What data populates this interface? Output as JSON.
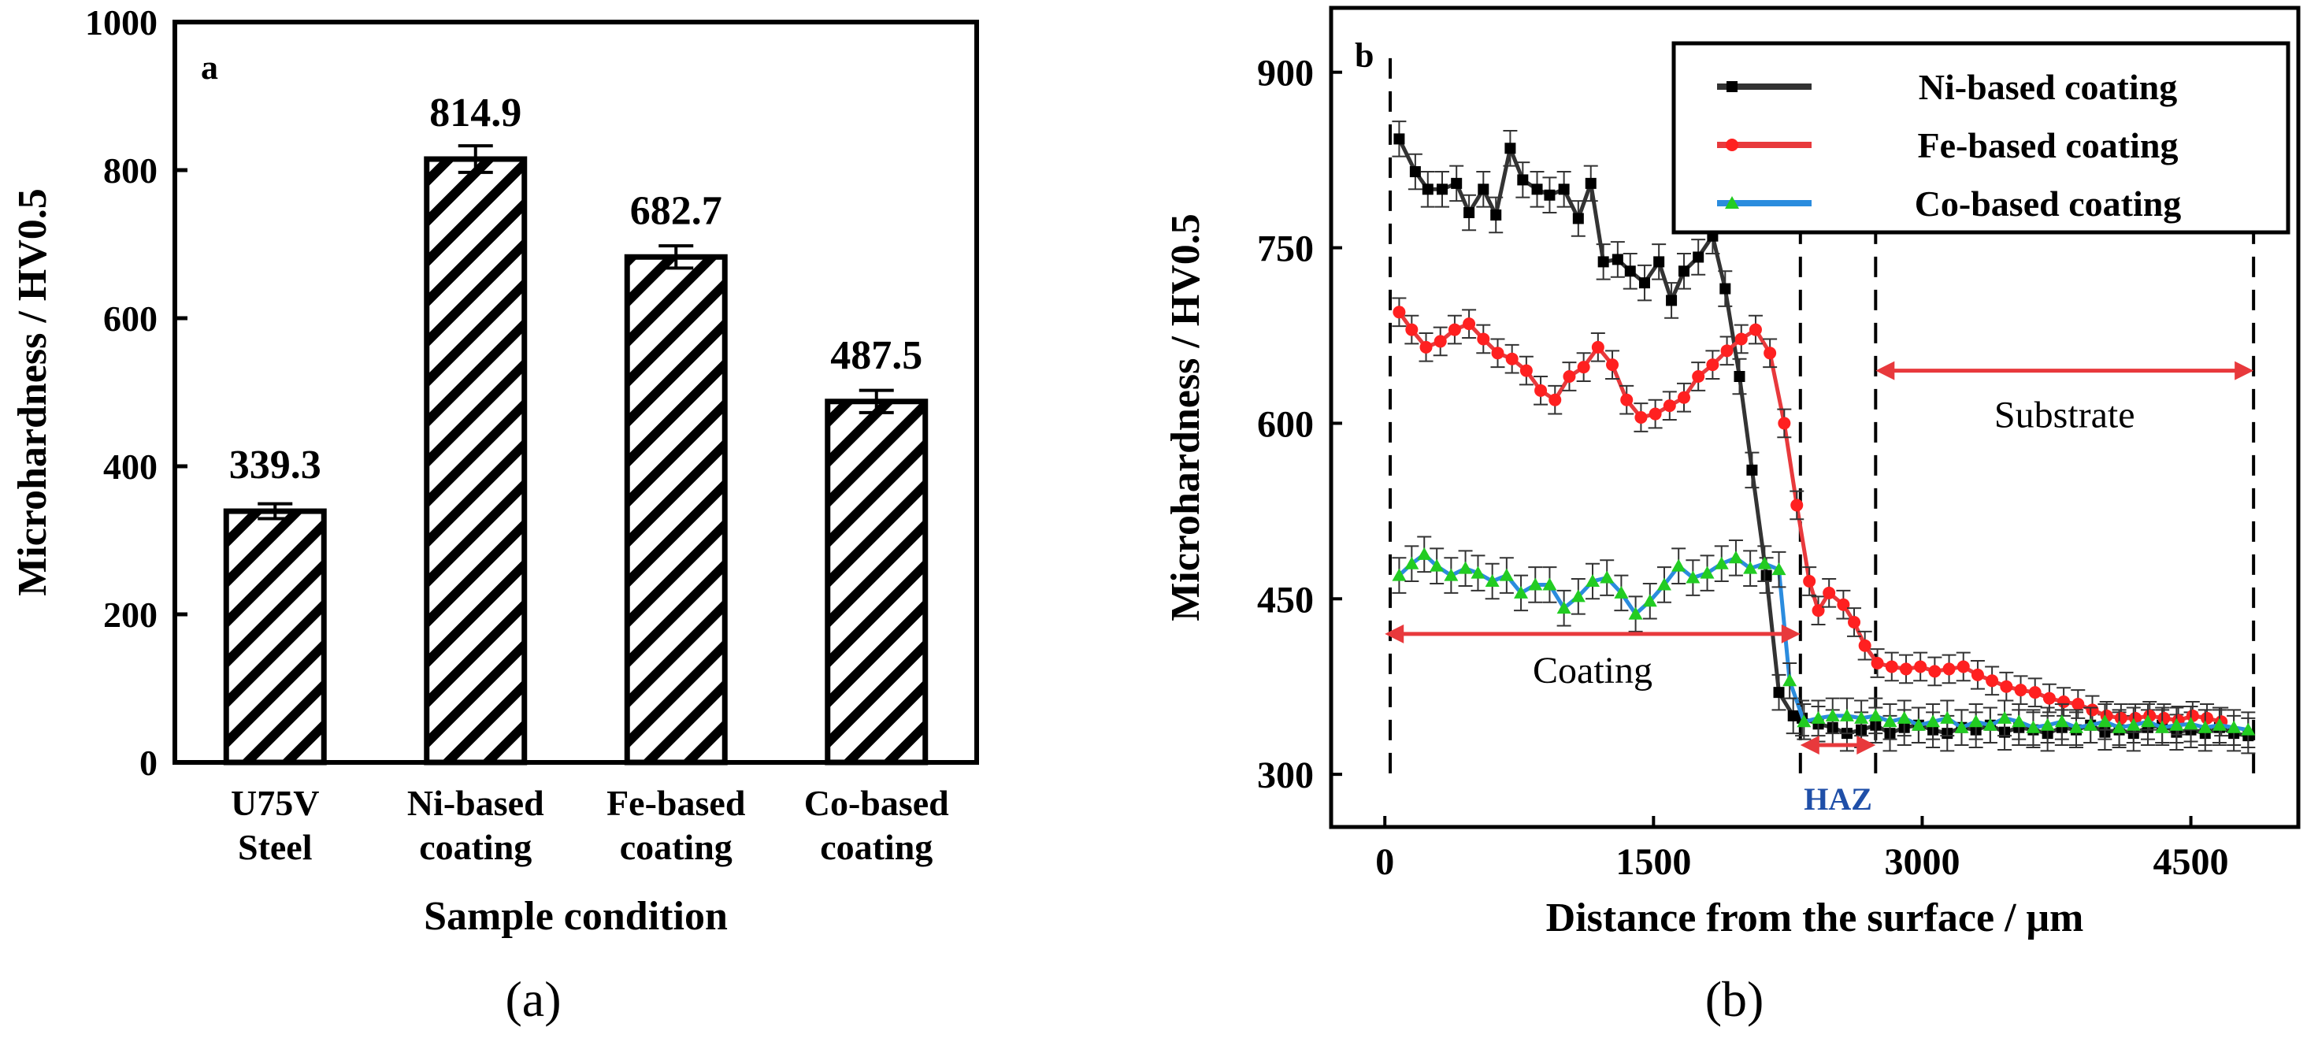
{
  "chart_data": [
    {
      "type": "bar",
      "panel_label": "a",
      "caption": "(a)",
      "categories": [
        [
          "U75V",
          "Steel"
        ],
        [
          "Ni-based",
          "coating"
        ],
        [
          "Fe-based",
          "coating"
        ],
        [
          "Co-based",
          "coating"
        ]
      ],
      "values": [
        339.3,
        814.9,
        682.7,
        487.5
      ],
      "errors": [
        10,
        18,
        15,
        15
      ],
      "value_labels": [
        "339.3",
        "814.9",
        "682.7",
        "487.5"
      ],
      "xlabel": "Sample condition",
      "ylabel": "Microhardness / HV0.5",
      "ylim": [
        0,
        1000
      ],
      "yticks": [
        0,
        200,
        400,
        600,
        800,
        1000
      ],
      "ytick_labels": [
        "0",
        "200",
        "400",
        "600",
        "800",
        "1000"
      ],
      "bar_fill": "diagonal-hatch",
      "grid": false
    },
    {
      "type": "line",
      "panel_label": "b",
      "caption": "(b)",
      "xlabel": "Distance from the surface / μm",
      "ylabel": "Microhardness / HV0.5",
      "xlim": [
        -300,
        5100
      ],
      "ylim": [
        255,
        955
      ],
      "xticks": [
        0,
        1500,
        3000,
        4500
      ],
      "xtick_labels": [
        "0",
        "1500",
        "3000",
        "4500"
      ],
      "yticks": [
        300,
        450,
        600,
        750,
        900
      ],
      "ytick_labels": [
        "300",
        "450",
        "600",
        "750",
        "900"
      ],
      "legend_position": "top-right",
      "grid": false,
      "series": [
        {
          "name": "Ni-based coating",
          "color": "#333333",
          "marker": "square",
          "marker_color": "#000000",
          "error": 15,
          "x": [
            80,
            170,
            240,
            320,
            400,
            470,
            550,
            620,
            700,
            770,
            850,
            920,
            1000,
            1080,
            1150,
            1220,
            1300,
            1370,
            1450,
            1530,
            1600,
            1670,
            1750,
            1830,
            1900,
            1980,
            2050,
            2130,
            2200,
            2280,
            2330,
            2420,
            2500,
            2580,
            2660,
            2740,
            2820,
            2900,
            2980,
            3060,
            3140,
            3220,
            3300,
            3380,
            3460,
            3540,
            3620,
            3700,
            3780,
            3860,
            3940,
            4020,
            4100,
            4180,
            4260,
            4340,
            4420,
            4500,
            4580,
            4660,
            4740,
            4820
          ],
          "y": [
            843,
            815,
            800,
            800,
            805,
            780,
            800,
            778,
            835,
            808,
            800,
            795,
            800,
            775,
            805,
            738,
            740,
            730,
            720,
            738,
            705,
            730,
            742,
            760,
            715,
            640,
            560,
            470,
            370,
            350,
            348,
            343,
            340,
            335,
            338,
            342,
            335,
            340,
            342,
            338,
            335,
            340,
            338,
            342,
            336,
            340,
            338,
            335,
            340,
            338,
            342,
            336,
            338,
            335,
            340,
            342,
            336,
            338,
            335,
            340,
            335,
            333
          ]
        },
        {
          "name": "Fe-based coating",
          "color": "#e8393c",
          "marker": "circle",
          "marker_color": "#ff2020",
          "error": 12,
          "x": [
            80,
            150,
            230,
            310,
            390,
            470,
            550,
            630,
            710,
            790,
            870,
            950,
            1030,
            1110,
            1190,
            1270,
            1350,
            1430,
            1510,
            1590,
            1670,
            1750,
            1830,
            1910,
            1990,
            2070,
            2150,
            2230,
            2300,
            2370,
            2420,
            2480,
            2560,
            2620,
            2680,
            2750,
            2830,
            2910,
            2990,
            3070,
            3150,
            3230,
            3310,
            3390,
            3470,
            3550,
            3630,
            3710,
            3790,
            3870,
            3950,
            4030,
            4110,
            4190,
            4270,
            4350,
            4430,
            4510,
            4590,
            4670
          ],
          "y": [
            695,
            680,
            665,
            670,
            680,
            685,
            672,
            660,
            655,
            645,
            628,
            620,
            640,
            648,
            665,
            650,
            620,
            605,
            608,
            615,
            622,
            640,
            650,
            662,
            672,
            680,
            660,
            600,
            530,
            465,
            440,
            455,
            445,
            430,
            410,
            395,
            392,
            390,
            392,
            388,
            390,
            392,
            385,
            380,
            375,
            372,
            370,
            365,
            362,
            360,
            355,
            350,
            348,
            348,
            350,
            348,
            346,
            350,
            348,
            345
          ]
        },
        {
          "name": "Co-based coating",
          "color": "#2b8cde",
          "marker": "triangle",
          "marker_color": "#22cc22",
          "error": 15,
          "x": [
            80,
            150,
            220,
            290,
            370,
            450,
            520,
            600,
            680,
            760,
            840,
            920,
            1000,
            1080,
            1160,
            1240,
            1320,
            1400,
            1480,
            1560,
            1640,
            1720,
            1800,
            1880,
            1960,
            2040,
            2120,
            2200,
            2260,
            2340,
            2420,
            2500,
            2580,
            2660,
            2740,
            2820,
            2900,
            2980,
            3060,
            3140,
            3220,
            3300,
            3380,
            3460,
            3540,
            3620,
            3700,
            3780,
            3860,
            3940,
            4020,
            4100,
            4180,
            4260,
            4340,
            4420,
            4500,
            4580,
            4660,
            4740,
            4820
          ],
          "y": [
            470,
            480,
            488,
            478,
            470,
            476,
            472,
            465,
            470,
            455,
            462,
            462,
            442,
            452,
            465,
            468,
            455,
            437,
            448,
            462,
            478,
            468,
            472,
            480,
            485,
            476,
            480,
            475,
            380,
            345,
            348,
            350,
            350,
            348,
            350,
            345,
            348,
            342,
            345,
            348,
            340,
            345,
            342,
            348,
            345,
            340,
            342,
            345,
            340,
            342,
            345,
            340,
            342,
            345,
            340,
            342,
            343,
            340,
            342,
            340,
            338
          ]
        }
      ],
      "annotations": [
        {
          "text": "Coating",
          "from": 0,
          "to": 2320,
          "y": 420
        },
        {
          "text": "HAZ",
          "from": 2320,
          "to": 2740,
          "y": 325
        },
        {
          "text": "Substrate",
          "from": 2740,
          "to": 4850,
          "y": 645
        }
      ],
      "dashed_lines_x": [
        30,
        2320,
        2740,
        4850
      ]
    }
  ]
}
